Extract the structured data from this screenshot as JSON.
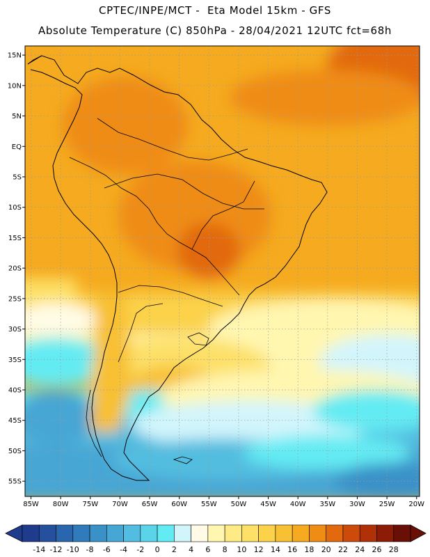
{
  "header": {
    "line1": "CPTEC/INPE/MCT -  Eta Model 15km - GFS",
    "line2": "Absolute Temperature (C) 850hPa - 28/04/2021 12UTC fct=68h"
  },
  "map": {
    "lat_labels": [
      "15N",
      "10N",
      "5N",
      "EQ",
      "5S",
      "10S",
      "15S",
      "20S",
      "25S",
      "30S",
      "35S",
      "40S",
      "45S",
      "50S",
      "55S"
    ],
    "lat_values": [
      15,
      10,
      5,
      0,
      -5,
      -10,
      -15,
      -20,
      -25,
      -30,
      -35,
      -40,
      -45,
      -50,
      -55
    ],
    "lon_labels": [
      "85W",
      "80W",
      "75W",
      "70W",
      "65W",
      "60W",
      "55W",
      "50W",
      "45W",
      "40W",
      "35W",
      "30W",
      "25W",
      "20W"
    ],
    "lon_values": [
      -85,
      -80,
      -75,
      -70,
      -65,
      -60,
      -55,
      -50,
      -45,
      -40,
      -35,
      -30,
      -25,
      -20
    ],
    "lat_range": [
      -57.5,
      16.5
    ],
    "lon_range": [
      -86,
      -19.5
    ]
  },
  "colorbar": {
    "labels": [
      "-14",
      "-12",
      "-10",
      "-8",
      "-6",
      "-4",
      "-2",
      "0",
      "2",
      "4",
      "6",
      "8",
      "10",
      "12",
      "14",
      "16",
      "18",
      "20",
      "22",
      "24",
      "26",
      "28"
    ],
    "colors": [
      "#1f3b8c",
      "#24509e",
      "#2a66ad",
      "#2f7bbb",
      "#3a91c8",
      "#46a6d4",
      "#52bde0",
      "#5bd4ea",
      "#63ebf3",
      "#d2f5fc",
      "#fffbe6",
      "#fff6b0",
      "#ffeb85",
      "#fde068",
      "#fbd24a",
      "#f8c033",
      "#f5aa1f",
      "#ef8c14",
      "#e2690e",
      "#cc4a0a",
      "#b03008",
      "#8c1c06",
      "#6a0f05"
    ]
  }
}
